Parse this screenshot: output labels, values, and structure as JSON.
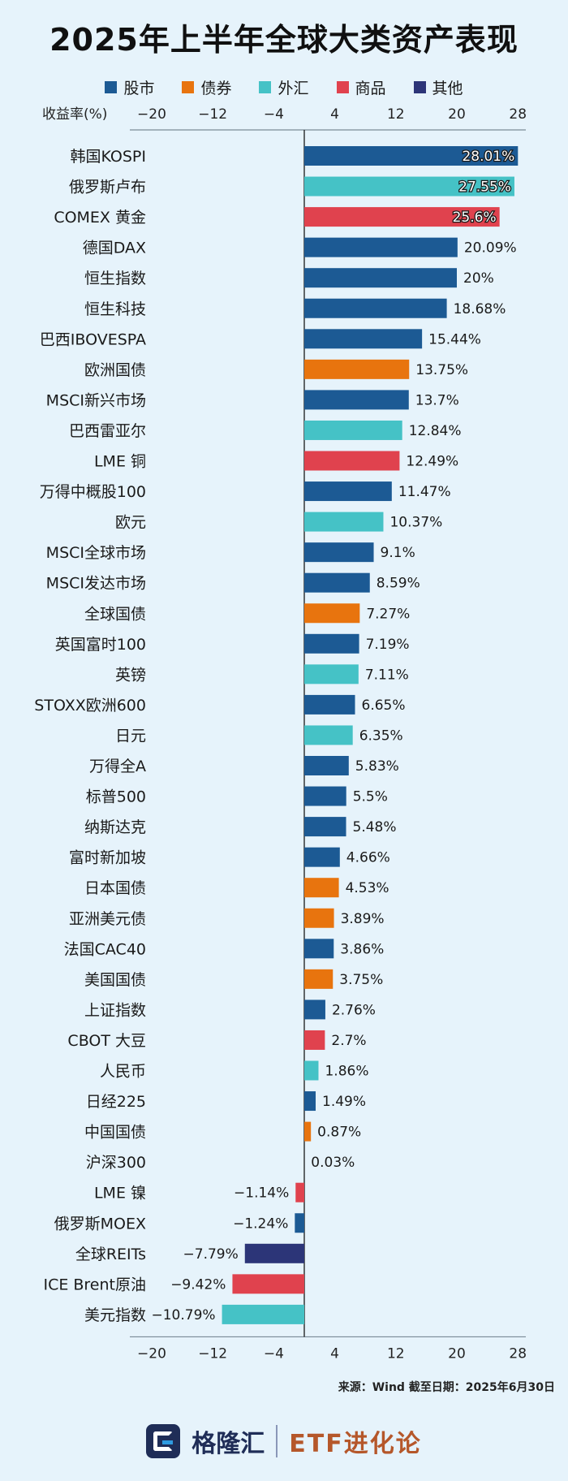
{
  "title": "2025年上半年全球大类资产表现",
  "legend": [
    {
      "label": "股市",
      "color": "#1c5a94"
    },
    {
      "label": "债券",
      "color": "#e8740e"
    },
    {
      "label": "外汇",
      "color": "#45c2c6"
    },
    {
      "label": "商品",
      "color": "#e0424e"
    },
    {
      "label": "其他",
      "color": "#2c3578"
    }
  ],
  "chart_data": {
    "type": "bar",
    "orientation": "horizontal",
    "ylabel": "收益率(%)",
    "xlim": [
      -20,
      28
    ],
    "ticks": [
      -20,
      -12,
      -4,
      4,
      12,
      20,
      28
    ],
    "grid": false,
    "legend_position": "top",
    "categories": [
      "韩国KOSPI",
      "俄罗斯卢布",
      "COMEX 黄金",
      "德国DAX",
      "恒生指数",
      "恒生科技",
      "巴西IBOVESPA",
      "欧洲国债",
      "MSCI新兴市场",
      "巴西雷亚尔",
      "LME 铜",
      "万得中概股100",
      "欧元",
      "MSCI全球市场",
      "MSCI发达市场",
      "全球国债",
      "英国富时100",
      "英镑",
      "STOXX欧洲600",
      "日元",
      "万得全A",
      "标普500",
      "纳斯达克",
      "富时新加坡",
      "日本国债",
      "亚洲美元债",
      "法国CAC40",
      "美国国债",
      "上证指数",
      "CBOT 大豆",
      "人民币",
      "日经225",
      "中国国债",
      "沪深300",
      "LME 镍",
      "俄罗斯MOEX",
      "全球REITs",
      "ICE Brent原油",
      "美元指数"
    ],
    "values": [
      28.01,
      27.55,
      25.6,
      20.09,
      20,
      18.68,
      15.44,
      13.75,
      13.7,
      12.84,
      12.49,
      11.47,
      10.37,
      9.1,
      8.59,
      7.27,
      7.19,
      7.11,
      6.65,
      6.35,
      5.83,
      5.5,
      5.48,
      4.66,
      4.53,
      3.89,
      3.86,
      3.75,
      2.76,
      2.7,
      1.86,
      1.49,
      0.87,
      0.03,
      -1.14,
      -1.24,
      -7.79,
      -9.42,
      -10.79
    ],
    "value_labels": [
      "28.01%",
      "27.55%",
      "25.6%",
      "20.09%",
      "20%",
      "18.68%",
      "15.44%",
      "13.75%",
      "13.7%",
      "12.84%",
      "12.49%",
      "11.47%",
      "10.37%",
      "9.1%",
      "8.59%",
      "7.27%",
      "7.19%",
      "7.11%",
      "6.65%",
      "6.35%",
      "5.83%",
      "5.5%",
      "5.48%",
      "4.66%",
      "4.53%",
      "3.89%",
      "3.86%",
      "3.75%",
      "2.76%",
      "2.7%",
      "1.86%",
      "1.49%",
      "0.87%",
      "0.03%",
      "−1.14%",
      "−1.24%",
      "−7.79%",
      "−9.42%",
      "−10.79%"
    ],
    "groups": [
      "股市",
      "外汇",
      "商品",
      "股市",
      "股市",
      "股市",
      "股市",
      "债券",
      "股市",
      "外汇",
      "商品",
      "股市",
      "外汇",
      "股市",
      "股市",
      "债券",
      "股市",
      "外汇",
      "股市",
      "外汇",
      "股市",
      "股市",
      "股市",
      "股市",
      "债券",
      "债券",
      "股市",
      "债券",
      "股市",
      "商品",
      "外汇",
      "股市",
      "债券",
      "股市",
      "商品",
      "股市",
      "其他",
      "商品",
      "外汇"
    ]
  },
  "source": "来源：Wind 截至日期：2025年6月30日",
  "footer": {
    "brand_cn": "格隆汇",
    "brand_etf": "ETF进化论"
  }
}
